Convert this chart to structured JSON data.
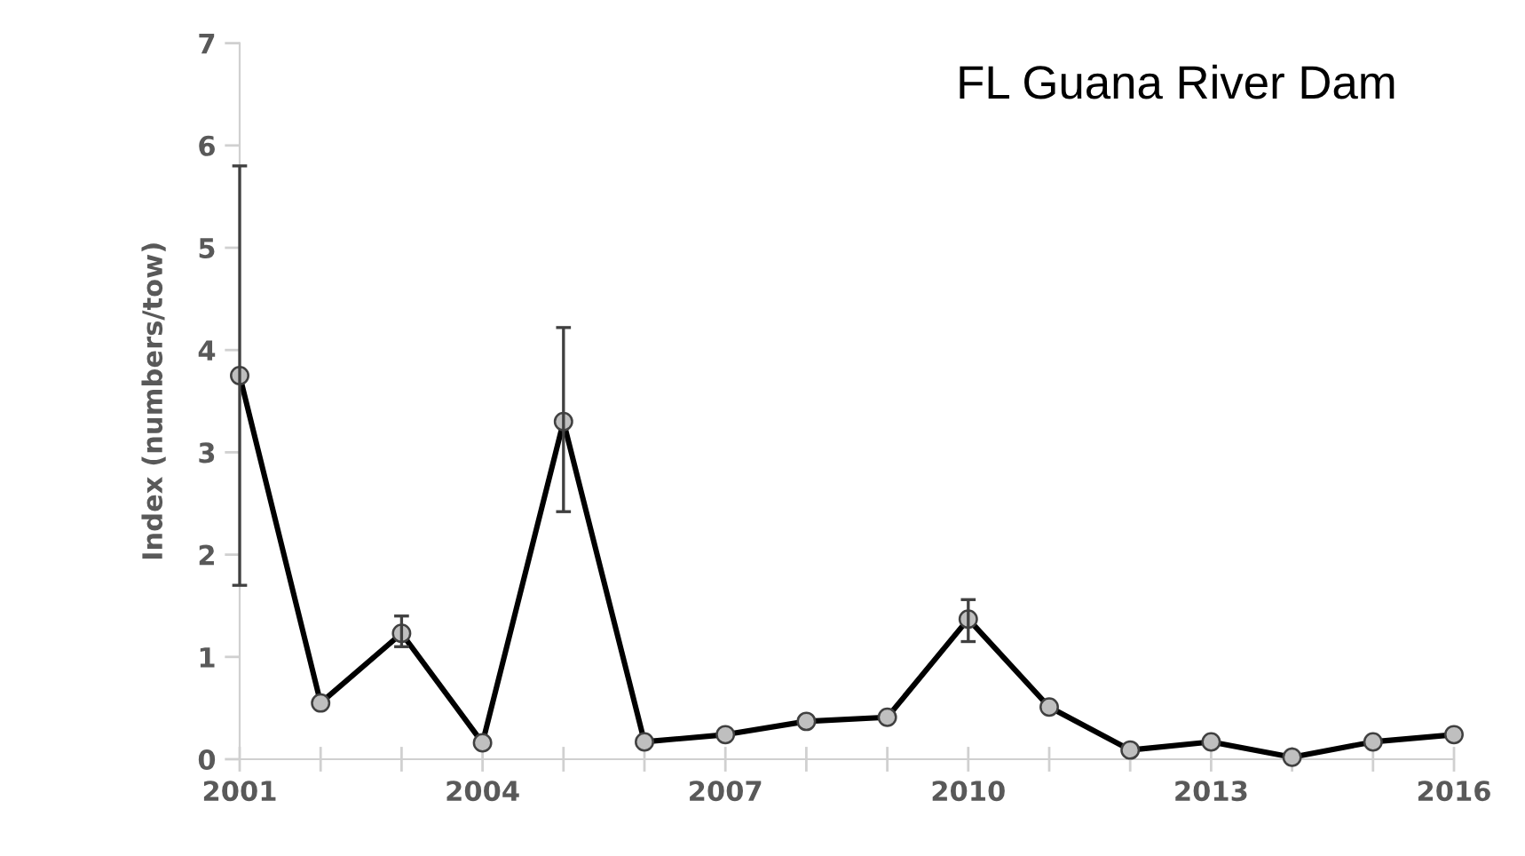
{
  "chart_data": {
    "type": "line",
    "title": "FL Guana River Dam",
    "ylabel": "Index (numbers/tow)",
    "x": [
      2001,
      2002,
      2003,
      2004,
      2005,
      2006,
      2007,
      2008,
      2009,
      2010,
      2011,
      2012,
      2013,
      2014,
      2015,
      2016
    ],
    "series": [
      {
        "color": "#000000",
        "values": [
          3.75,
          0.55,
          1.23,
          0.16,
          3.3,
          0.17,
          0.24,
          0.37,
          0.41,
          1.37,
          0.51,
          0.09,
          0.17,
          0.02,
          0.17,
          0.24
        ],
        "errors": [
          [
            1.7,
            5.8
          ],
          null,
          [
            1.1,
            1.4
          ],
          null,
          [
            2.42,
            4.22
          ],
          null,
          null,
          null,
          null,
          [
            1.15,
            1.56
          ],
          null,
          null,
          null,
          null,
          null,
          null
        ]
      }
    ],
    "xlim": [
      2001,
      2016
    ],
    "xticks": [
      2001,
      {
        "value": 2002,
        "label": null
      },
      {
        "value": 2003,
        "label": null
      },
      2004,
      {
        "value": 2005,
        "label": null
      },
      {
        "value": 2006,
        "label": null
      },
      2007,
      {
        "value": 2008,
        "label": null
      },
      {
        "value": 2009,
        "label": null
      },
      2010,
      {
        "value": 2011,
        "label": null
      },
      {
        "value": 2012,
        "label": null
      },
      2013,
      {
        "value": 2014,
        "label": null
      },
      {
        "value": 2015,
        "label": null
      },
      2016
    ],
    "ylim": [
      0,
      7
    ],
    "yticks": [
      0,
      1,
      2,
      3,
      4,
      5,
      6,
      7
    ],
    "marker": "circle",
    "line_style": "solid",
    "grid": false,
    "legend": false
  }
}
